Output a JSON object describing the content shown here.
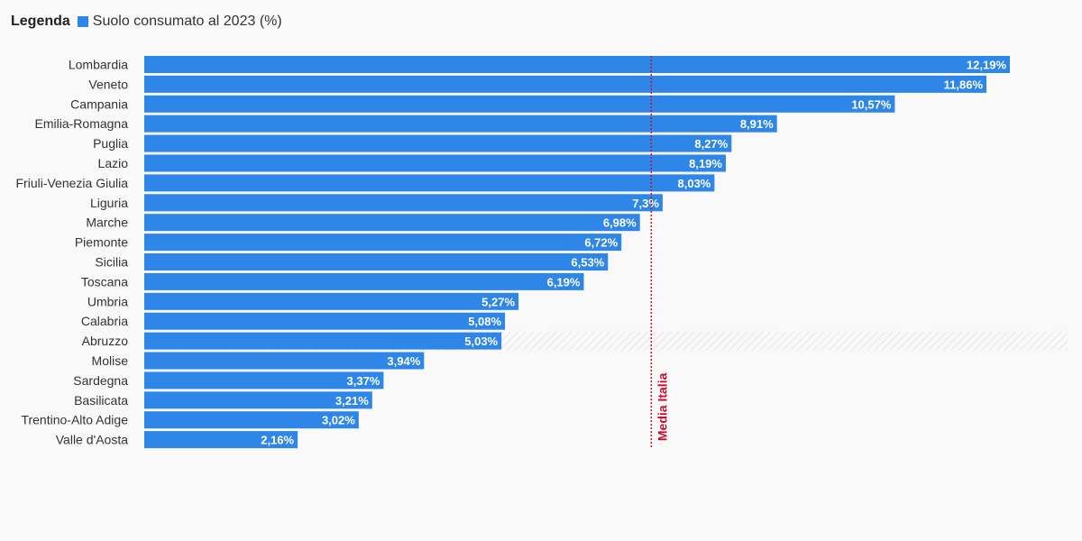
{
  "legend": {
    "title": "Legenda",
    "items": [
      {
        "label": "Suolo consumato al 2023 (%)",
        "color": "#2e86e8"
      }
    ]
  },
  "chart_data": {
    "type": "bar",
    "orientation": "horizontal",
    "title": "",
    "xlabel": "",
    "ylabel": "",
    "xlim": [
      0,
      12.19
    ],
    "grid": false,
    "legend_position": "top-left",
    "series": [
      {
        "name": "Suolo consumato al 2023 (%)",
        "color": "#2e86e8",
        "categories": [
          "Lombardia",
          "Veneto",
          "Campania",
          "Emilia-Romagna",
          "Puglia",
          "Lazio",
          "Friuli-Venezia Giulia",
          "Liguria",
          "Marche",
          "Piemonte",
          "Sicilia",
          "Toscana",
          "Umbria",
          "Calabria",
          "Abruzzo",
          "Molise",
          "Sardegna",
          "Basilicata",
          "Trentino-Alto Adige",
          "Valle d'Aosta"
        ],
        "values": [
          12.19,
          11.86,
          10.57,
          8.91,
          8.27,
          8.19,
          8.03,
          7.3,
          6.98,
          6.72,
          6.53,
          6.19,
          5.27,
          5.08,
          5.03,
          3.94,
          3.37,
          3.21,
          3.02,
          2.16
        ],
        "value_labels": [
          "12,19%",
          "11,86%",
          "10,57%",
          "8,91%",
          "8,27%",
          "8,19%",
          "8,03%",
          "7,3%",
          "6,98%",
          "6,72%",
          "6,53%",
          "6,19%",
          "5,27%",
          "5,08%",
          "5,03%",
          "3,94%",
          "3,37%",
          "3,21%",
          "3,02%",
          "2,16%"
        ]
      }
    ],
    "highlighted_category": "Abruzzo",
    "reference_line": {
      "label": "Media Italia",
      "value": 7.14,
      "color": "#c8102e"
    }
  }
}
